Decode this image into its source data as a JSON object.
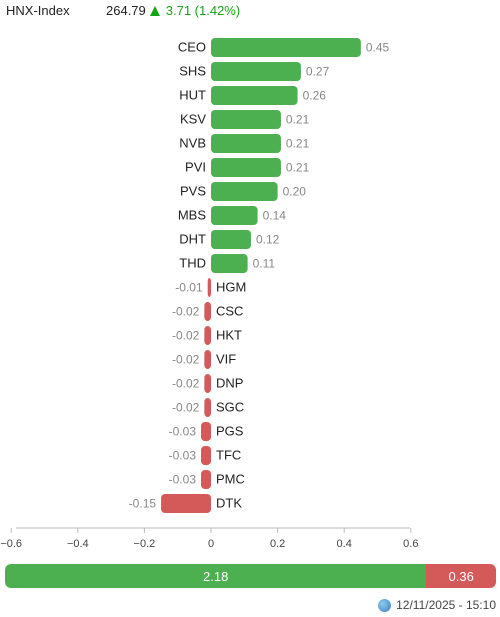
{
  "header": {
    "index_name": "HNX-Index",
    "index_value": "264.79",
    "index_change": "3.71 (1.42%)"
  },
  "chart_data": {
    "type": "bar",
    "orientation": "horizontal",
    "categories": [
      "CEO",
      "SHS",
      "HUT",
      "KSV",
      "NVB",
      "PVI",
      "PVS",
      "MBS",
      "DHT",
      "THD",
      "HGM",
      "CSC",
      "HKT",
      "VIF",
      "DNP",
      "SGC",
      "PGS",
      "TFC",
      "PMC",
      "DTK"
    ],
    "values": [
      0.45,
      0.27,
      0.26,
      0.21,
      0.21,
      0.21,
      0.2,
      0.14,
      0.12,
      0.11,
      -0.01,
      -0.02,
      -0.02,
      -0.02,
      -0.02,
      -0.02,
      -0.03,
      -0.03,
      -0.03,
      -0.15
    ],
    "value_labels": [
      "0.45",
      "0.27",
      "0.26",
      "0.21",
      "0.21",
      "0.21",
      "0.20",
      "0.14",
      "0.12",
      "0.11",
      "-0.01",
      "-0.02",
      "-0.02",
      "-0.02",
      "-0.02",
      "-0.02",
      "-0.03",
      "-0.03",
      "-0.03",
      "-0.15"
    ],
    "xlim": [
      -0.6,
      0.6
    ],
    "xticks": [
      -0.6,
      -0.4,
      -0.2,
      0,
      0.2,
      0.4,
      0.6
    ],
    "xtick_labels": [
      "−0.6",
      "−0.4",
      "−0.2",
      "0",
      "0.2",
      "0.4",
      "0.6"
    ],
    "positive_color": "#4caf50",
    "negative_color": "#d45a5a",
    "grid": false,
    "legend": "none"
  },
  "summary": {
    "positive_total": 2.18,
    "negative_total": 0.36,
    "positive_label": "2.18",
    "negative_label": "0.36"
  },
  "footer": {
    "timestamp": "12/11/2025 - 15:10",
    "icon": "globe-icon"
  }
}
